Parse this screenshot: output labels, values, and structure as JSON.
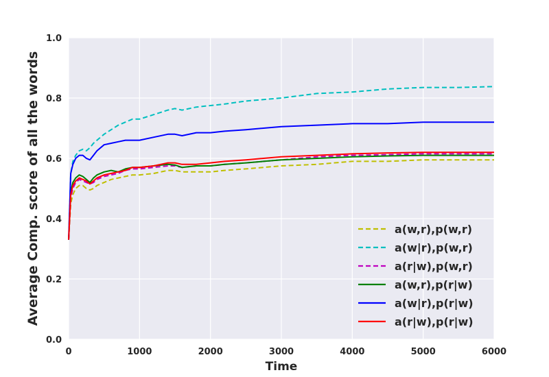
{
  "chart_data": {
    "type": "line",
    "title": "",
    "xlabel": "Time",
    "ylabel": "Average Comp. score of all the words",
    "xlim": [
      0,
      6000
    ],
    "ylim": [
      0.0,
      1.0
    ],
    "xticks": [
      "0",
      "1000",
      "2000",
      "3000",
      "4000",
      "5000",
      "6000"
    ],
    "yticks": [
      "0.0",
      "0.2",
      "0.4",
      "0.6",
      "0.8",
      "1.0"
    ],
    "grid": true,
    "legend_position": "lower-right",
    "series": [
      {
        "name": "a(w,r),p(w,r)",
        "color": "#bfbf00",
        "dash": "dashed",
        "x": [
          0,
          30,
          60,
          100,
          150,
          200,
          250,
          300,
          350,
          400,
          500,
          600,
          700,
          800,
          900,
          1000,
          1200,
          1400,
          1500,
          1600,
          1800,
          2000,
          2200,
          2500,
          3000,
          3500,
          4000,
          4500,
          5000,
          5500,
          6000
        ],
        "y": [
          0.33,
          0.45,
          0.48,
          0.5,
          0.51,
          0.51,
          0.5,
          0.495,
          0.5,
          0.51,
          0.52,
          0.53,
          0.535,
          0.54,
          0.545,
          0.545,
          0.55,
          0.56,
          0.56,
          0.555,
          0.555,
          0.555,
          0.56,
          0.565,
          0.575,
          0.58,
          0.59,
          0.59,
          0.595,
          0.595,
          0.595
        ]
      },
      {
        "name": "a(w|r),p(w,r)",
        "color": "#00bfbf",
        "dash": "dashed",
        "x": [
          0,
          30,
          60,
          100,
          150,
          200,
          250,
          300,
          350,
          400,
          500,
          600,
          700,
          800,
          900,
          1000,
          1200,
          1400,
          1500,
          1600,
          1800,
          2000,
          2200,
          2500,
          3000,
          3500,
          4000,
          4500,
          5000,
          5500,
          6000
        ],
        "y": [
          0.33,
          0.55,
          0.59,
          0.61,
          0.625,
          0.63,
          0.625,
          0.635,
          0.65,
          0.66,
          0.68,
          0.695,
          0.71,
          0.72,
          0.73,
          0.73,
          0.745,
          0.76,
          0.765,
          0.76,
          0.77,
          0.775,
          0.78,
          0.79,
          0.8,
          0.815,
          0.82,
          0.83,
          0.835,
          0.835,
          0.838
        ]
      },
      {
        "name": "a(r|w),p(w,r)",
        "color": "#bf00bf",
        "dash": "dashed",
        "x": [
          0,
          30,
          60,
          100,
          150,
          200,
          250,
          300,
          350,
          400,
          500,
          600,
          700,
          800,
          900,
          1000,
          1200,
          1400,
          1500,
          1600,
          1800,
          2000,
          2200,
          2500,
          3000,
          3500,
          4000,
          4500,
          5000,
          5500,
          6000
        ],
        "y": [
          0.33,
          0.47,
          0.5,
          0.52,
          0.53,
          0.525,
          0.52,
          0.515,
          0.52,
          0.53,
          0.54,
          0.545,
          0.55,
          0.56,
          0.565,
          0.565,
          0.57,
          0.575,
          0.575,
          0.57,
          0.575,
          0.575,
          0.58,
          0.585,
          0.595,
          0.605,
          0.61,
          0.612,
          0.615,
          0.615,
          0.615
        ]
      },
      {
        "name": "a(w,r),p(r|w)",
        "color": "#008000",
        "dash": "solid",
        "x": [
          0,
          30,
          60,
          100,
          150,
          200,
          250,
          300,
          350,
          400,
          500,
          600,
          700,
          800,
          900,
          1000,
          1200,
          1400,
          1500,
          1600,
          1800,
          2000,
          2200,
          2500,
          3000,
          3500,
          4000,
          4500,
          5000,
          5500,
          6000
        ],
        "y": [
          0.33,
          0.49,
          0.52,
          0.535,
          0.545,
          0.54,
          0.53,
          0.52,
          0.535,
          0.545,
          0.555,
          0.56,
          0.555,
          0.565,
          0.57,
          0.57,
          0.575,
          0.58,
          0.578,
          0.57,
          0.575,
          0.575,
          0.58,
          0.585,
          0.595,
          0.6,
          0.605,
          0.608,
          0.61,
          0.61,
          0.61
        ]
      },
      {
        "name": "a(w|r),p(r|w)",
        "color": "#0000ff",
        "dash": "solid",
        "x": [
          0,
          30,
          60,
          100,
          150,
          200,
          250,
          300,
          350,
          400,
          500,
          600,
          700,
          800,
          900,
          1000,
          1200,
          1400,
          1500,
          1600,
          1800,
          2000,
          2200,
          2500,
          3000,
          3500,
          4000,
          4500,
          5000,
          5500,
          6000
        ],
        "y": [
          0.33,
          0.55,
          0.58,
          0.6,
          0.61,
          0.61,
          0.6,
          0.595,
          0.61,
          0.625,
          0.645,
          0.65,
          0.655,
          0.66,
          0.66,
          0.66,
          0.67,
          0.68,
          0.68,
          0.675,
          0.685,
          0.685,
          0.69,
          0.695,
          0.705,
          0.71,
          0.715,
          0.715,
          0.72,
          0.72,
          0.72
        ]
      },
      {
        "name": "a(r|w),p(r|w)",
        "color": "#ff0000",
        "dash": "solid",
        "x": [
          0,
          30,
          60,
          100,
          150,
          200,
          250,
          300,
          350,
          400,
          500,
          600,
          700,
          800,
          900,
          1000,
          1200,
          1400,
          1500,
          1600,
          1800,
          2000,
          2200,
          2500,
          3000,
          3500,
          4000,
          4500,
          5000,
          5500,
          6000
        ],
        "y": [
          0.33,
          0.48,
          0.51,
          0.525,
          0.535,
          0.53,
          0.525,
          0.515,
          0.525,
          0.535,
          0.545,
          0.55,
          0.555,
          0.56,
          0.57,
          0.57,
          0.575,
          0.585,
          0.585,
          0.58,
          0.58,
          0.585,
          0.59,
          0.595,
          0.605,
          0.61,
          0.615,
          0.618,
          0.62,
          0.62,
          0.62
        ]
      }
    ]
  }
}
